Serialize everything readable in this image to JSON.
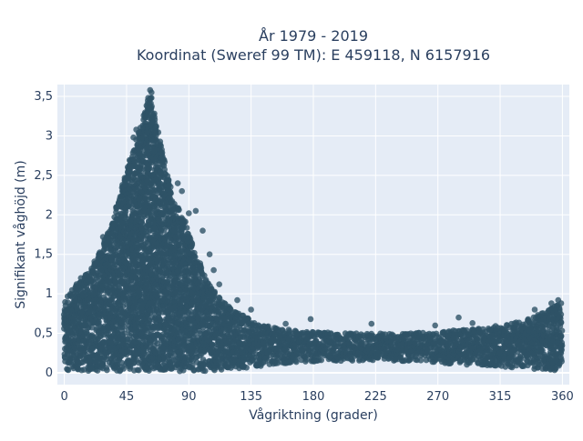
{
  "chart_data": {
    "type": "scatter",
    "title_line1": "År 1979 - 2019",
    "title_line2": "Koordinat (Sweref 99 TM): E 459118, N 6157916",
    "xlabel": "Vågriktning (grader)",
    "ylabel": "Signifikant våghöjd (m)",
    "xlim": [
      -5,
      365
    ],
    "ylim": [
      -0.15,
      3.65
    ],
    "xticks": [
      0,
      45,
      90,
      135,
      180,
      225,
      270,
      315,
      360
    ],
    "xtick_labels": [
      "0",
      "45",
      "90",
      "135",
      "180",
      "225",
      "270",
      "315",
      "360"
    ],
    "yticks": [
      0,
      0.5,
      1,
      1.5,
      2,
      2.5,
      3,
      3.5
    ],
    "ytick_labels": [
      "0",
      "0,5",
      "1",
      "1,5",
      "2",
      "2,5",
      "3",
      "3,5"
    ],
    "grid": true,
    "marker_color": "#2e5266",
    "plot_bg": "#e5ecf6",
    "envelope": {
      "x": [
        0,
        5,
        10,
        15,
        20,
        25,
        30,
        35,
        40,
        45,
        50,
        55,
        60,
        62,
        65,
        70,
        75,
        80,
        85,
        90,
        95,
        100,
        105,
        110,
        115,
        120,
        130,
        140,
        150,
        160,
        180,
        200,
        225,
        250,
        270,
        290,
        315,
        330,
        345,
        355,
        360
      ],
      "y_upper": [
        0.9,
        1.05,
        1.15,
        1.25,
        1.35,
        1.55,
        1.7,
        1.95,
        2.25,
        2.55,
        2.85,
        3.1,
        3.45,
        3.58,
        3.3,
        2.9,
        2.5,
        2.15,
        2.05,
        1.8,
        1.5,
        1.3,
        1.1,
        1.0,
        0.9,
        0.82,
        0.72,
        0.62,
        0.58,
        0.55,
        0.52,
        0.5,
        0.5,
        0.5,
        0.52,
        0.55,
        0.6,
        0.65,
        0.75,
        0.85,
        0.9
      ],
      "y_lower": [
        0.02,
        0.02,
        0.02,
        0.02,
        0.02,
        0.02,
        0.02,
        0.02,
        0.02,
        0.02,
        0.02,
        0.02,
        0.02,
        0.02,
        0.02,
        0.02,
        0.02,
        0.02,
        0.02,
        0.02,
        0.02,
        0.02,
        0.02,
        0.03,
        0.04,
        0.05,
        0.06,
        0.08,
        0.1,
        0.12,
        0.14,
        0.15,
        0.15,
        0.15,
        0.12,
        0.1,
        0.08,
        0.06,
        0.04,
        0.03,
        0.02
      ]
    },
    "outliers": [
      {
        "x": 62,
        "y": 3.58
      },
      {
        "x": 63,
        "y": 3.55
      },
      {
        "x": 62,
        "y": 3.47
      },
      {
        "x": 60,
        "y": 3.37
      },
      {
        "x": 52,
        "y": 3.08
      },
      {
        "x": 50,
        "y": 2.98
      },
      {
        "x": 48,
        "y": 2.62
      },
      {
        "x": 46,
        "y": 2.55
      },
      {
        "x": 42,
        "y": 2.38
      },
      {
        "x": 40,
        "y": 2.2
      },
      {
        "x": 38,
        "y": 2.1
      },
      {
        "x": 35,
        "y": 1.88
      },
      {
        "x": 28,
        "y": 1.72
      },
      {
        "x": 30,
        "y": 1.62
      },
      {
        "x": 25,
        "y": 1.5
      },
      {
        "x": 22,
        "y": 1.38
      },
      {
        "x": 95,
        "y": 2.05
      },
      {
        "x": 90,
        "y": 2.02
      },
      {
        "x": 85,
        "y": 2.3
      },
      {
        "x": 82,
        "y": 2.4
      },
      {
        "x": 100,
        "y": 1.8
      },
      {
        "x": 105,
        "y": 1.5
      },
      {
        "x": 108,
        "y": 1.3
      },
      {
        "x": 112,
        "y": 1.12
      },
      {
        "x": 125,
        "y": 0.92
      },
      {
        "x": 135,
        "y": 0.8
      },
      {
        "x": 160,
        "y": 0.62
      },
      {
        "x": 178,
        "y": 0.68
      },
      {
        "x": 222,
        "y": 0.62
      },
      {
        "x": 268,
        "y": 0.6
      },
      {
        "x": 285,
        "y": 0.7
      },
      {
        "x": 295,
        "y": 0.63
      },
      {
        "x": 340,
        "y": 0.8
      },
      {
        "x": 345,
        "y": 0.75
      },
      {
        "x": 352,
        "y": 0.88
      },
      {
        "x": 357,
        "y": 0.92
      },
      {
        "x": 4,
        "y": 0.98
      },
      {
        "x": 8,
        "y": 1.05
      },
      {
        "x": 12,
        "y": 1.2
      },
      {
        "x": 18,
        "y": 1.22
      }
    ]
  }
}
